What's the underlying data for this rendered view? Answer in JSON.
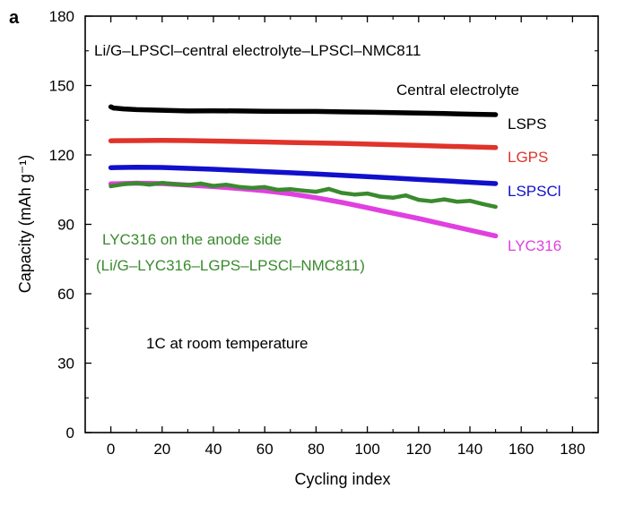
{
  "panel_label": "a",
  "chart_data": {
    "type": "line",
    "title": "Li/G–LPSCl–central electrolyte–LPSCl–NMC811",
    "legend_title": "Central electrolyte",
    "xlabel": "Cycling index",
    "ylabel": "Capacity (mAh g⁻¹)",
    "xlim": [
      -10,
      190
    ],
    "ylim": [
      0,
      180
    ],
    "xticks": [
      0,
      20,
      40,
      60,
      80,
      100,
      120,
      140,
      160,
      180
    ],
    "yticks": [
      0,
      30,
      60,
      90,
      120,
      150,
      180
    ],
    "grid": false,
    "annotations": [
      "LYC316 on the anode side",
      "(Li/G–LYC316–LGPS–LPSCl–NMC811)",
      "1C at room temperature"
    ],
    "series": [
      {
        "name": "LSPS",
        "color": "#000000",
        "x": [
          0,
          1,
          5,
          10,
          20,
          30,
          40,
          50,
          60,
          70,
          80,
          90,
          100,
          110,
          120,
          130,
          140,
          150
        ],
        "y": [
          140.8,
          140.3,
          139.9,
          139.6,
          139.3,
          139.0,
          139.1,
          139.0,
          138.9,
          138.8,
          138.8,
          138.6,
          138.5,
          138.3,
          138.1,
          137.9,
          137.6,
          137.4
        ]
      },
      {
        "name": "LGPS",
        "color": "#e0332a",
        "x": [
          0,
          10,
          20,
          30,
          40,
          50,
          60,
          70,
          80,
          90,
          100,
          110,
          120,
          130,
          140,
          150
        ],
        "y": [
          126.1,
          126.2,
          126.3,
          126.2,
          126.0,
          125.8,
          125.6,
          125.4,
          125.2,
          125.0,
          124.7,
          124.4,
          124.1,
          123.8,
          123.5,
          123.2
        ]
      },
      {
        "name": "LSPSCl",
        "color": "#1010cc",
        "x": [
          0,
          10,
          20,
          30,
          40,
          50,
          60,
          70,
          80,
          90,
          100,
          110,
          120,
          130,
          140,
          150
        ],
        "y": [
          114.5,
          114.7,
          114.6,
          114.2,
          113.8,
          113.3,
          112.8,
          112.3,
          111.8,
          111.2,
          110.6,
          110.0,
          109.4,
          108.8,
          108.2,
          107.6
        ]
      },
      {
        "name": "LYC316",
        "color": "#e040e0",
        "x": [
          0,
          10,
          20,
          30,
          40,
          50,
          60,
          70,
          80,
          90,
          100,
          110,
          120,
          130,
          140,
          150
        ],
        "y": [
          107.5,
          107.8,
          107.6,
          107.0,
          106.3,
          105.5,
          104.5,
          103.2,
          101.5,
          99.5,
          97.2,
          94.8,
          92.5,
          90.0,
          87.5,
          85.0
        ]
      },
      {
        "name": "",
        "color": "#3a8a2e",
        "x": [
          0,
          5,
          10,
          15,
          20,
          25,
          30,
          35,
          40,
          45,
          50,
          55,
          60,
          65,
          70,
          75,
          80,
          85,
          90,
          95,
          100,
          105,
          110,
          115,
          120,
          125,
          130,
          135,
          140,
          145,
          150
        ],
        "y": [
          106.5,
          107.4,
          107.8,
          107.2,
          107.9,
          107.4,
          107.0,
          107.6,
          106.6,
          107.1,
          106.2,
          105.7,
          106.1,
          104.9,
          105.2,
          104.6,
          104.1,
          105.3,
          103.6,
          102.9,
          103.3,
          102.0,
          101.5,
          102.5,
          100.6,
          100.0,
          100.8,
          99.8,
          100.2,
          98.8,
          97.6
        ]
      }
    ]
  }
}
